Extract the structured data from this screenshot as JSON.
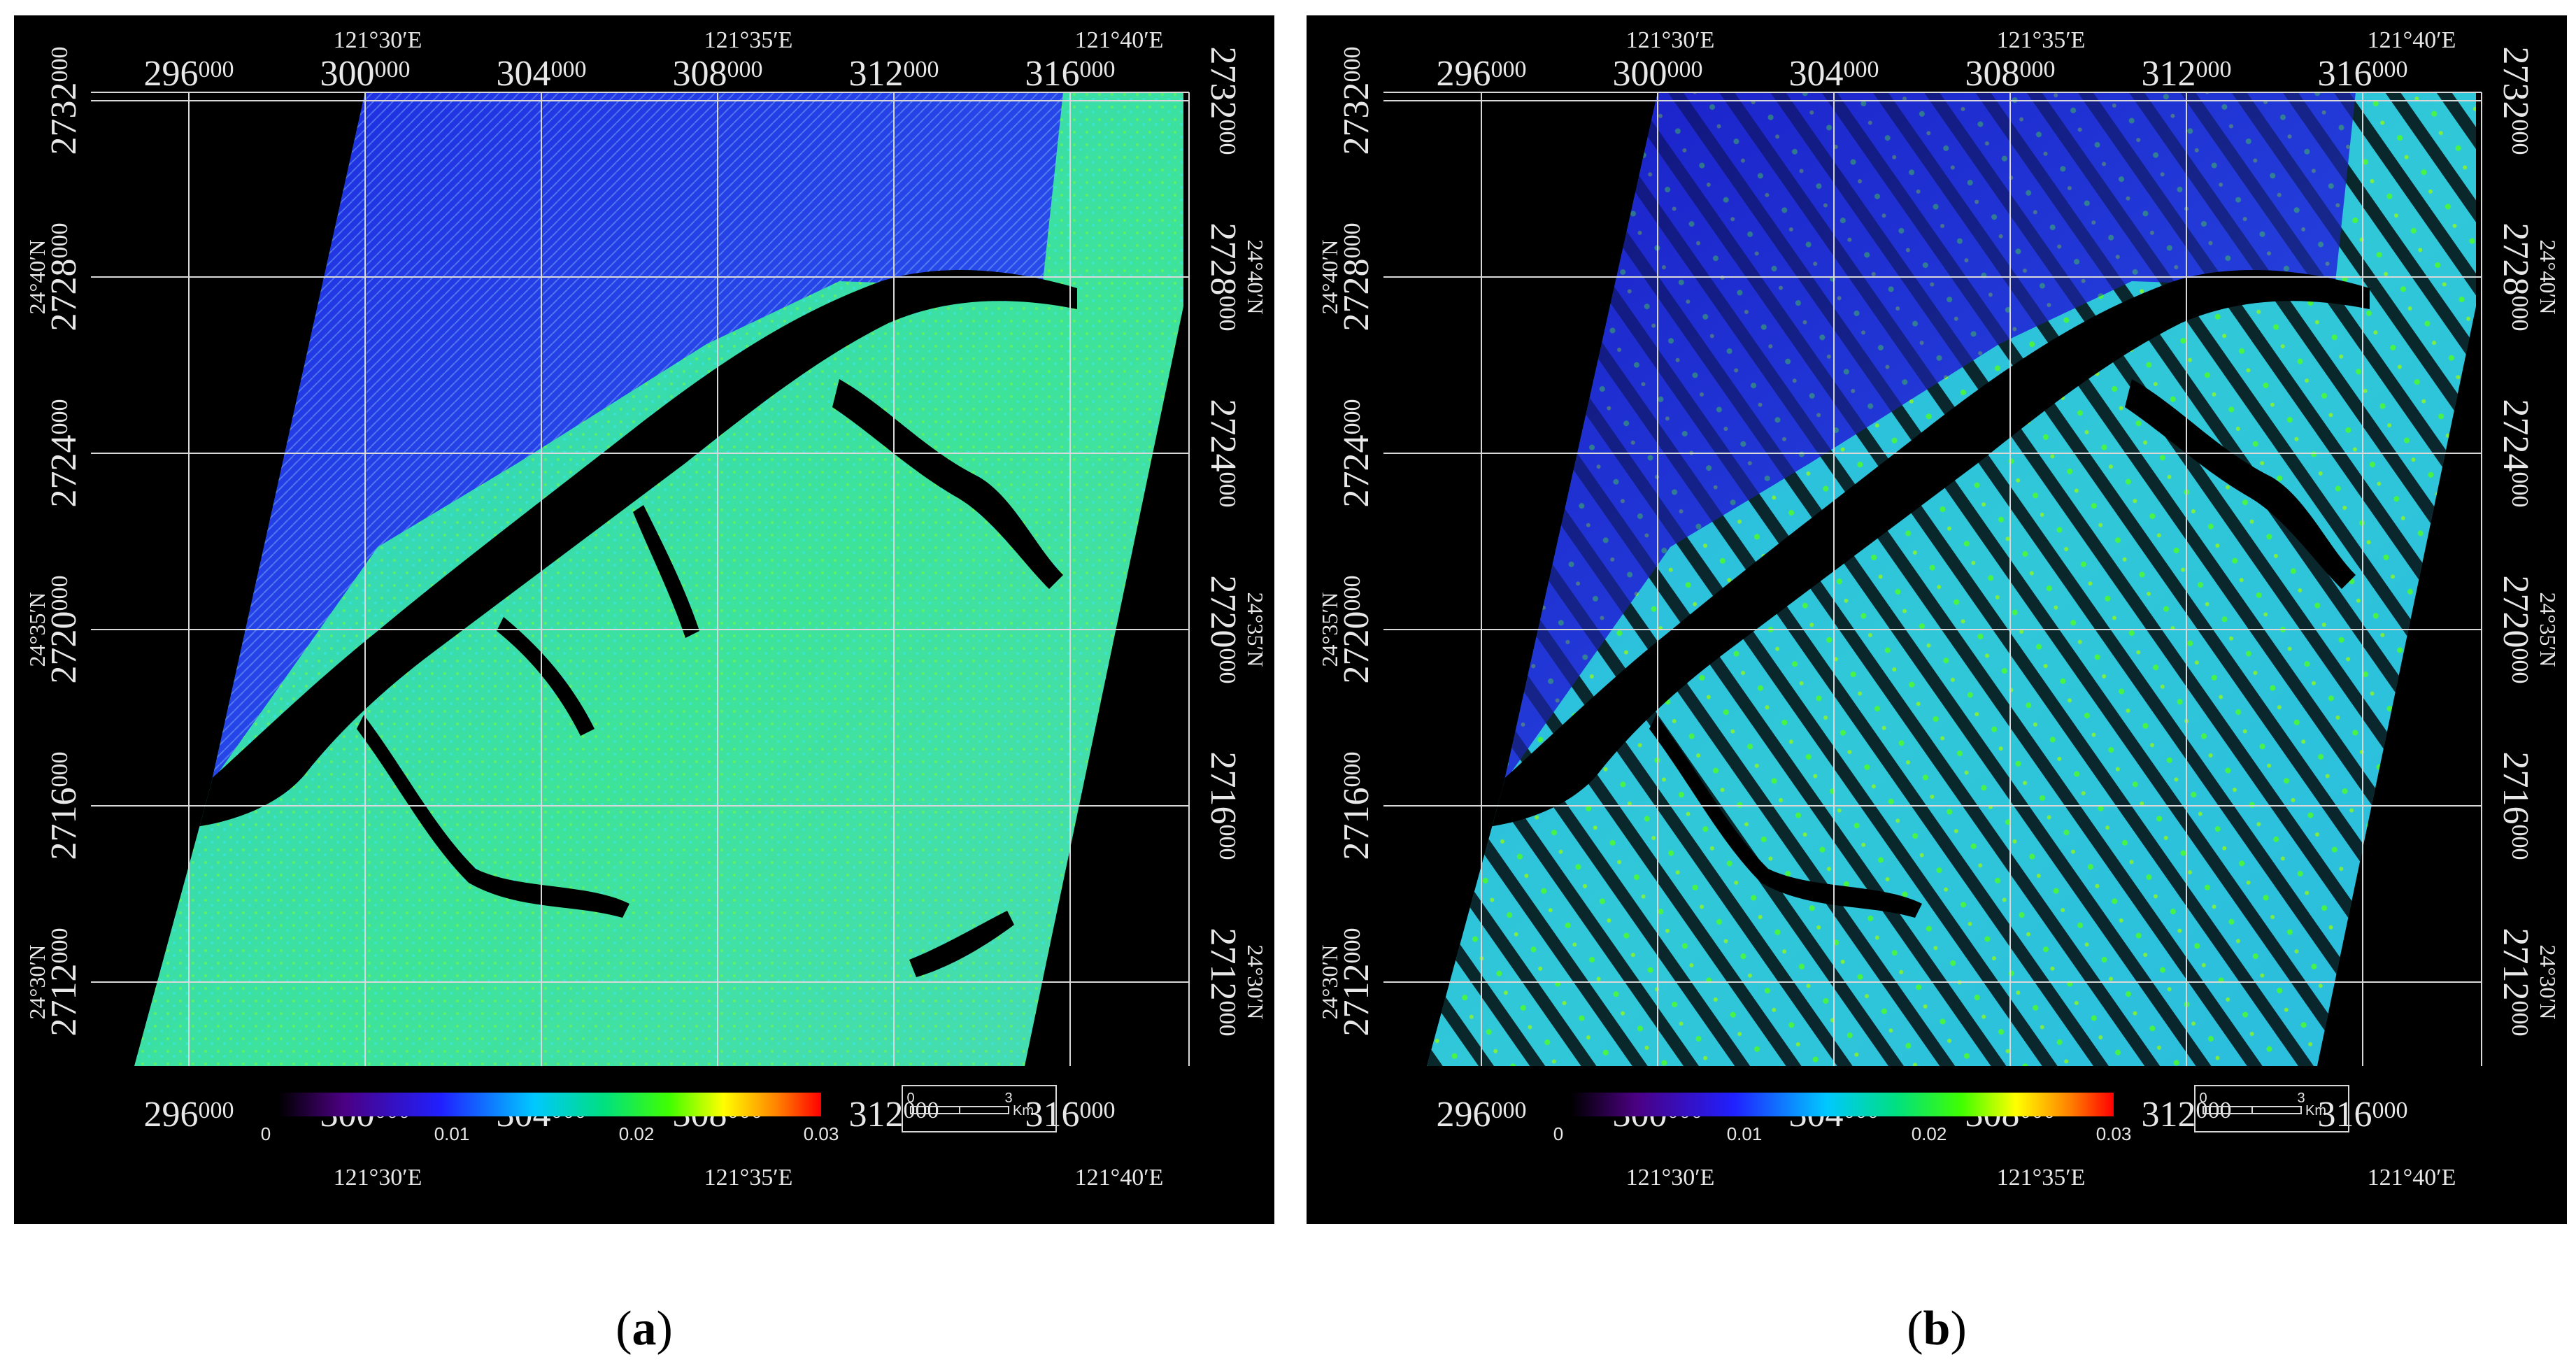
{
  "figure": {
    "panels": [
      {
        "id": "a",
        "label_open": "(",
        "label_letter": "a",
        "label_close": ")",
        "top_lon_labels": [
          "121°30′E",
          "121°35′E",
          "121°40′E"
        ],
        "bottom_lon_labels": [
          "121°30′E",
          "121°35′E",
          "121°40′E"
        ],
        "easting_labels": [
          {
            "big": "296",
            "small": "000"
          },
          {
            "big": "300",
            "small": "000"
          },
          {
            "big": "304",
            "small": "000"
          },
          {
            "big": "308",
            "small": "000"
          },
          {
            "big": "312",
            "small": "000"
          },
          {
            "big": "316",
            "small": "000"
          }
        ],
        "northing_labels": [
          {
            "big": "2732",
            "small": "000"
          },
          {
            "big": "2728",
            "small": "000"
          },
          {
            "big": "2724",
            "small": "000"
          },
          {
            "big": "2720",
            "small": "000"
          },
          {
            "big": "2716",
            "small": "000"
          },
          {
            "big": "2712",
            "small": "000"
          }
        ],
        "lat_labels": [
          "24°40′N",
          "24°35′N",
          "24°30′N"
        ],
        "colorbar": {
          "ticks": [
            "0",
            "0.01",
            "0.02",
            "0.03"
          ]
        },
        "scalebar": {
          "start": "0",
          "end": "3",
          "unit": "Km"
        }
      },
      {
        "id": "b",
        "label_open": "(",
        "label_letter": "b",
        "label_close": ")",
        "top_lon_labels": [
          "121°30′E",
          "121°35′E",
          "121°40′E"
        ],
        "bottom_lon_labels": [
          "121°30′E",
          "121°35′E",
          "121°40′E"
        ],
        "easting_labels": [
          {
            "big": "296",
            "small": "000"
          },
          {
            "big": "300",
            "small": "000"
          },
          {
            "big": "304",
            "small": "000"
          },
          {
            "big": "308",
            "small": "000"
          },
          {
            "big": "312",
            "small": "000"
          },
          {
            "big": "316",
            "small": "000"
          }
        ],
        "northing_labels": [
          {
            "big": "2732",
            "small": "000"
          },
          {
            "big": "2728",
            "small": "000"
          },
          {
            "big": "2724",
            "small": "000"
          },
          {
            "big": "2720",
            "small": "000"
          },
          {
            "big": "2716",
            "small": "000"
          },
          {
            "big": "2712",
            "small": "000"
          }
        ],
        "lat_labels": [
          "24°40′N",
          "24°35′N",
          "24°30′N"
        ],
        "colorbar": {
          "ticks": [
            "0",
            "0.01",
            "0.02",
            "0.03"
          ]
        },
        "scalebar": {
          "start": "0",
          "end": "3",
          "unit": "Km"
        }
      }
    ],
    "colors": {
      "background": "#000000",
      "grid": "#d9d9d9",
      "label": "#e8e8e8",
      "water": "#000000",
      "ramp": [
        "#000000",
        "#4b0082",
        "#2020ff",
        "#00c8ff",
        "#00e080",
        "#40ff00",
        "#ffff00",
        "#ff8000",
        "#ff0000"
      ]
    }
  }
}
